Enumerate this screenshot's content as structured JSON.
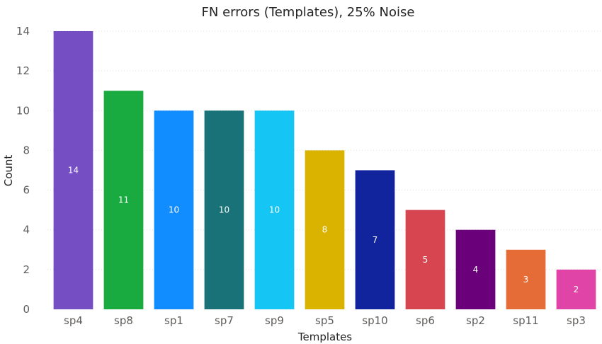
{
  "chart_data": {
    "type": "bar",
    "title": "FN errors (Templates), 25% Noise",
    "xlabel": "Templates",
    "ylabel": "Count",
    "ylim": [
      0,
      14
    ],
    "yticks": [
      0,
      2,
      4,
      6,
      8,
      10,
      12,
      14
    ],
    "grid": true,
    "categories": [
      "sp4",
      "sp8",
      "sp1",
      "sp7",
      "sp9",
      "sp5",
      "sp10",
      "sp6",
      "sp2",
      "sp11",
      "sp3"
    ],
    "values": [
      14,
      11,
      10,
      10,
      10,
      8,
      7,
      5,
      4,
      3,
      2
    ],
    "colors": [
      "#744EC2",
      "#1AAB40",
      "#118DFF",
      "#197278",
      "#15C6F4",
      "#D9B300",
      "#12239E",
      "#D64550",
      "#6B007B",
      "#E66C37",
      "#E044A7"
    ]
  }
}
